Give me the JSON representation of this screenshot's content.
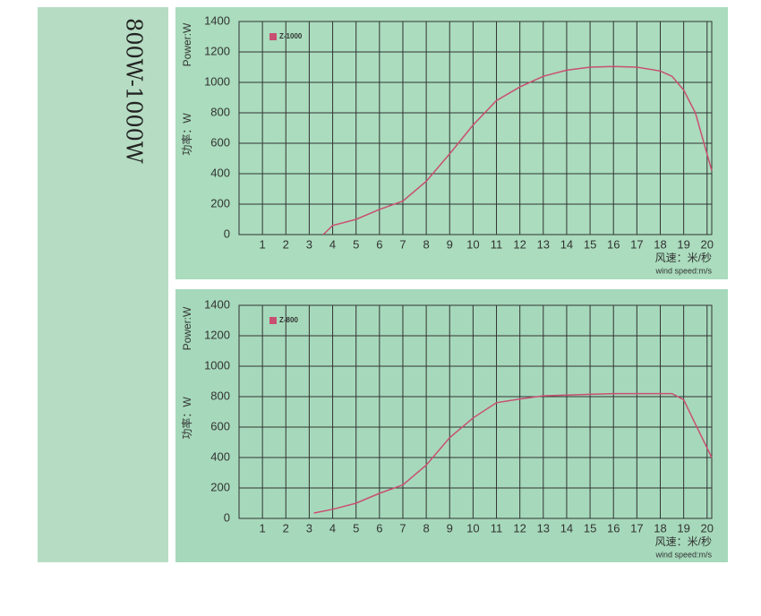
{
  "side_label": "800W-1000W",
  "chart_data": [
    {
      "type": "line",
      "ylabel": "Power:W",
      "ylabel_cn": "功率：W",
      "xlabel_cn": "风速：米/秒",
      "xlabel": "wind speed:m/s",
      "x": [
        3.6,
        4,
        5,
        6,
        7,
        8,
        9,
        10,
        11,
        12,
        13,
        14,
        15,
        16,
        17,
        18,
        18.5,
        19,
        19.5,
        20.2
      ],
      "series": [
        {
          "name": "Z-1000",
          "color": "#c94f72",
          "values": [
            0,
            60,
            100,
            165,
            220,
            350,
            530,
            720,
            880,
            970,
            1040,
            1080,
            1100,
            1105,
            1100,
            1075,
            1040,
            950,
            800,
            420
          ]
        }
      ],
      "xlim": [
        0,
        20.2
      ],
      "xticks": [
        1,
        2,
        3,
        4,
        5,
        6,
        7,
        8,
        9,
        10,
        11,
        12,
        13,
        14,
        15,
        16,
        17,
        18,
        19,
        20
      ],
      "ylim": [
        0,
        1400
      ],
      "yticks": [
        0,
        200,
        400,
        600,
        800,
        1000,
        1200,
        1400
      ],
      "grid": true
    },
    {
      "type": "line",
      "ylabel": "Power:W",
      "ylabel_cn": "功率：W",
      "xlabel_cn": "风速：米/秒",
      "xlabel": "wind speed:m/s",
      "x": [
        3.2,
        4,
        5,
        6,
        7,
        8,
        9,
        10,
        11,
        12,
        13,
        14,
        15,
        16,
        17,
        18,
        18.5,
        19,
        19.5,
        20.2
      ],
      "series": [
        {
          "name": "Z-800",
          "color": "#c94f72",
          "values": [
            35,
            60,
            100,
            165,
            220,
            350,
            530,
            660,
            760,
            785,
            805,
            810,
            815,
            820,
            820,
            820,
            820,
            780,
            620,
            400
          ]
        }
      ],
      "xlim": [
        0,
        20.2
      ],
      "xticks": [
        1,
        2,
        3,
        4,
        5,
        6,
        7,
        8,
        9,
        10,
        11,
        12,
        13,
        14,
        15,
        16,
        17,
        18,
        19,
        20
      ],
      "ylim": [
        0,
        1400
      ],
      "yticks": [
        0,
        200,
        400,
        600,
        800,
        1000,
        1200,
        1400
      ],
      "grid": true
    }
  ]
}
